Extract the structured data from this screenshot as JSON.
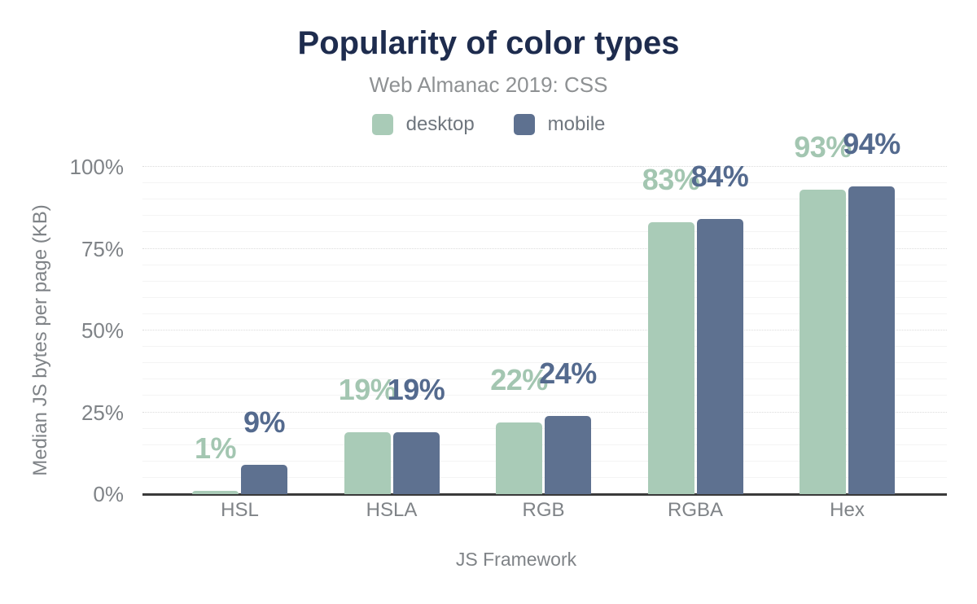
{
  "header": {
    "title": "Popularity of color types",
    "subtitle": "Web Almanac 2019: CSS"
  },
  "chart_data": {
    "type": "bar",
    "title": "Popularity of color types",
    "subtitle": "Web Almanac 2019: CSS",
    "categories": [
      "HSL",
      "HSLA",
      "RGB",
      "RGBA",
      "Hex"
    ],
    "series": [
      {
        "name": "desktop",
        "color": "#a9cbb7",
        "label_color": "#a3c6b1",
        "values": [
          1,
          19,
          22,
          83,
          93
        ]
      },
      {
        "name": "mobile",
        "color": "#5e7190",
        "label_color": "#546a8e",
        "values": [
          9,
          19,
          24,
          84,
          94
        ]
      }
    ],
    "data_labels": [
      [
        "1%",
        "9%"
      ],
      [
        "19%",
        "19%"
      ],
      [
        "22%",
        "24%"
      ],
      [
        "83%",
        "84%"
      ],
      [
        "93%",
        "94%"
      ]
    ],
    "xlabel": "JS Framework",
    "ylabel": "Median JS bytes per page (KB)",
    "yticks": [
      {
        "label": "0%",
        "value": 0
      },
      {
        "label": "25%",
        "value": 25
      },
      {
        "label": "50%",
        "value": 50
      },
      {
        "label": "75%",
        "value": 75
      },
      {
        "label": "100%",
        "value": 100
      }
    ],
    "ylim": [
      0,
      100
    ],
    "grid": {
      "minor_step": 5,
      "major_step": 25,
      "major_style": "dotted",
      "minor_style": "solid"
    },
    "legend_position": "top"
  },
  "colors": {
    "background": "#ffffff",
    "title": "#1e2c4e",
    "subtitle": "#8e9193",
    "axis_text": "#7f8387",
    "axis_line": "#3a3a3a",
    "grid_minor": "#f4f4f4",
    "grid_major": "#dcdcdc"
  }
}
